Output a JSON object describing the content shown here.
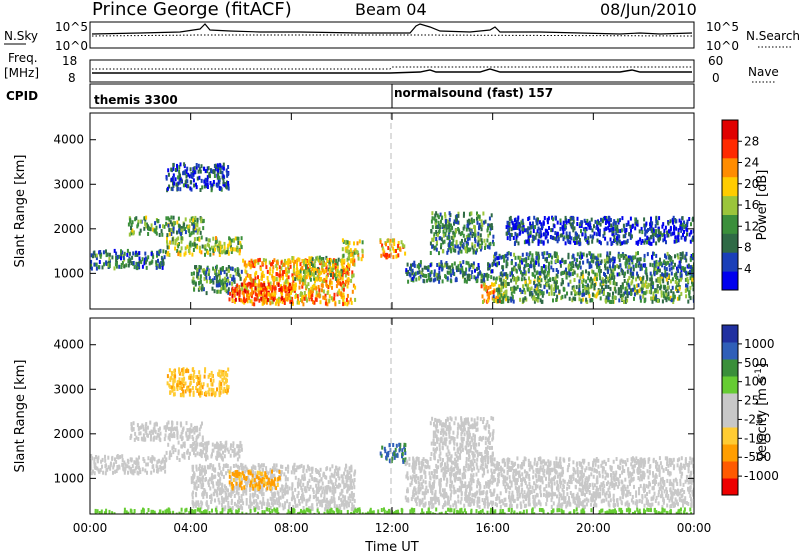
{
  "header": {
    "station": "Prince George (fitACF)",
    "beam": "Beam 04",
    "date": "08/Jun/2010"
  },
  "noise_panel": {
    "left_label": "N.Sky",
    "right_label": "N.Search",
    "tick_top": "10^5",
    "tick_bottom": "10^0",
    "right_tick_top": "10^5",
    "right_tick_bottom": "10^0"
  },
  "freq_panel": {
    "left_label_1": "Freq.",
    "left_label_2": "[MHz]",
    "right_label": "Nave",
    "tick_top": "18",
    "tick_bottom": "8",
    "right_tick_top": "60",
    "right_tick_bottom": "0"
  },
  "cpid_panel": {
    "label": "CPID",
    "mode_1": "themis 3300",
    "mode_2": "normalsound (fast) 157",
    "mode_change_hour": 12
  },
  "colors": {
    "power": [
      "#0000ee",
      "#1a3fb8",
      "#2f6a46",
      "#3b8f3b",
      "#9bc53b",
      "#ffcc00",
      "#ff8c00",
      "#ff2a00",
      "#e00000"
    ],
    "velocity": [
      "#ee0000",
      "#ff5a00",
      "#ff9e00",
      "#ffcc33",
      "#c8c8c8",
      "#c8c8c8",
      "#66cc33",
      "#3a8f3a",
      "#2f5fb8",
      "#2030a0"
    ],
    "ground_scatter": "#c8c8c8"
  },
  "chart_data": [
    {
      "type": "heatmap",
      "title": "",
      "xlabel": "",
      "ylabel": "Slant Range [km]",
      "xlim": [
        0,
        24
      ],
      "ylim": [
        200,
        4600
      ],
      "x_tick_values": [
        0,
        4,
        8,
        12,
        16,
        20,
        24
      ],
      "y_tick_values": [
        1000,
        2000,
        3000,
        4000
      ],
      "y_tick_labels": [
        "1000",
        "2000",
        "3000",
        "4000"
      ],
      "colorbar": {
        "label": "Power [dB]",
        "ticks": [
          "4",
          "8",
          "12",
          "16",
          "20",
          "24",
          "28"
        ]
      },
      "scatter_regions": [
        {
          "hours": [
            0.0,
            3.0
          ],
          "range_km": [
            1150,
            1550
          ],
          "power_db": 10
        },
        {
          "hours": [
            3.0,
            6.0
          ],
          "range_km": [
            1450,
            1850
          ],
          "power_db": 18
        },
        {
          "hours": [
            1.5,
            4.5
          ],
          "range_km": [
            1900,
            2300
          ],
          "power_db": 14
        },
        {
          "hours": [
            3.0,
            5.5
          ],
          "range_km": [
            2900,
            3500
          ],
          "power_db": 6
        },
        {
          "hours": [
            4.0,
            6.0
          ],
          "range_km": [
            600,
            1200
          ],
          "power_db": 12
        },
        {
          "hours": [
            6.0,
            10.5
          ],
          "range_km": [
            350,
            1350
          ],
          "power_db": 24
        },
        {
          "hours": [
            5.5,
            8.0
          ],
          "range_km": [
            400,
            800
          ],
          "power_db": 28
        },
        {
          "hours": [
            8.0,
            10.0
          ],
          "range_km": [
            900,
            1400
          ],
          "power_db": 18
        },
        {
          "hours": [
            10.0,
            10.8
          ],
          "range_km": [
            1300,
            1800
          ],
          "power_db": 20
        },
        {
          "hours": [
            11.5,
            12.5
          ],
          "range_km": [
            1400,
            1800
          ],
          "power_db": 24
        },
        {
          "hours": [
            12.5,
            16.0
          ],
          "range_km": [
            850,
            1300
          ],
          "power_db": 10
        },
        {
          "hours": [
            13.5,
            16.0
          ],
          "range_km": [
            1500,
            2400
          ],
          "power_db": 12
        },
        {
          "hours": [
            15.5,
            16.5
          ],
          "range_km": [
            400,
            800
          ],
          "power_db": 24
        },
        {
          "hours": [
            16.0,
            24.0
          ],
          "range_km": [
            400,
            1000
          ],
          "power_db": 14
        },
        {
          "hours": [
            16.0,
            24.0
          ],
          "range_km": [
            1000,
            1500
          ],
          "power_db": 10
        },
        {
          "hours": [
            16.5,
            24.0
          ],
          "range_km": [
            1700,
            2300
          ],
          "power_db": 6
        }
      ]
    },
    {
      "type": "heatmap",
      "title": "",
      "xlabel": "Time UT",
      "ylabel": "Slant Range [km]",
      "xlim": [
        0,
        24
      ],
      "ylim": [
        200,
        4600
      ],
      "x_tick_values": [
        0,
        4,
        8,
        12,
        16,
        20,
        24
      ],
      "x_tick_labels": [
        "00:00",
        "04:00",
        "08:00",
        "12:00",
        "16:00",
        "20:00",
        "00:00"
      ],
      "y_tick_values": [
        1000,
        2000,
        3000,
        4000
      ],
      "y_tick_labels": [
        "1000",
        "2000",
        "3000",
        "4000"
      ],
      "colorbar": {
        "label": "Velocity [m s",
        "label_superscript": "-1",
        "label_end": "]",
        "ticks": [
          "-1000",
          "-500",
          "-100",
          "-25",
          "25",
          "100",
          "500",
          "1000"
        ]
      },
      "scatter_regions": [
        {
          "hours": [
            0.0,
            3.0
          ],
          "range_km": [
            1150,
            1550
          ],
          "velocity": 0
        },
        {
          "hours": [
            3.0,
            6.0
          ],
          "range_km": [
            1450,
            1850
          ],
          "velocity": 0
        },
        {
          "hours": [
            1.5,
            4.5
          ],
          "range_km": [
            1900,
            2300
          ],
          "velocity": 0
        },
        {
          "hours": [
            3.0,
            5.5
          ],
          "range_km": [
            2900,
            3500
          ],
          "velocity": -80
        },
        {
          "hours": [
            4.0,
            10.5
          ],
          "range_km": [
            350,
            1350
          ],
          "velocity": 0
        },
        {
          "hours": [
            5.5,
            7.5
          ],
          "range_km": [
            800,
            1200
          ],
          "velocity": -150
        },
        {
          "hours": [
            11.5,
            12.5
          ],
          "range_km": [
            1400,
            1800
          ],
          "velocity": 600
        },
        {
          "hours": [
            12.5,
            24.0
          ],
          "range_km": [
            400,
            1500
          ],
          "velocity": 0
        },
        {
          "hours": [
            13.5,
            16.0
          ],
          "range_km": [
            1500,
            2400
          ],
          "velocity": 0
        },
        {
          "hours": [
            0.0,
            24.0
          ],
          "range_km": [
            200,
            350
          ],
          "velocity": 60
        }
      ]
    }
  ]
}
